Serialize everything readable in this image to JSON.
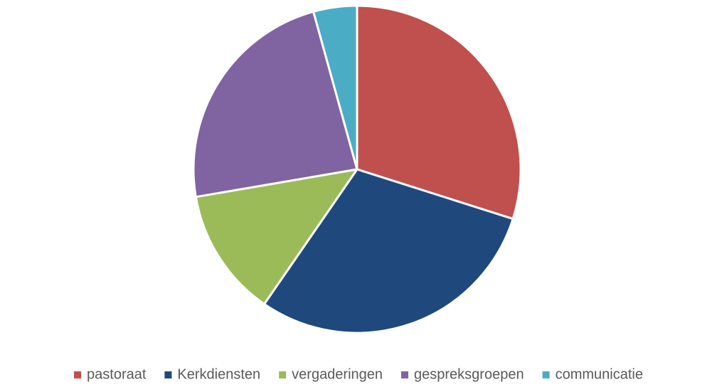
{
  "chart_data": {
    "type": "pie",
    "categories": [
      "pastoraat",
      "Kerkdiensten",
      "vergaderingen",
      "gespreksgroepen",
      "communicatie"
    ],
    "values": [
      29.9,
      29.7,
      12.7,
      23.4,
      4.3
    ],
    "colors": [
      "#c0504d",
      "#1f497d",
      "#9bbb59",
      "#8064a2",
      "#4bacc6"
    ],
    "legend": "bottom"
  }
}
